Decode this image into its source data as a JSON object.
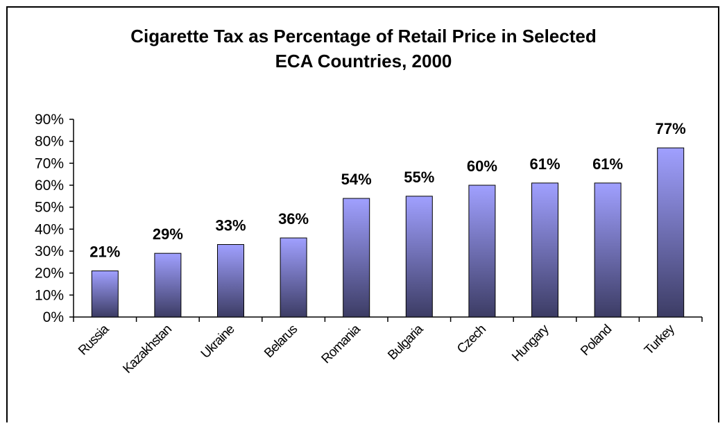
{
  "chart_data": {
    "type": "bar",
    "title_line1": "Cigarette Tax as Percentage of Retail Price in Selected",
    "title_line2": "ECA Countries, 2000",
    "xlabel": "",
    "ylabel": "",
    "categories": [
      "Russia",
      "Kazakhstan",
      "Ukraine",
      "Belarus",
      "Romania",
      "Bulgaria",
      "Czech",
      "Hungary",
      "Poland",
      "Turkey"
    ],
    "values": [
      21,
      29,
      33,
      36,
      54,
      55,
      60,
      61,
      61,
      77
    ],
    "value_labels": [
      "21%",
      "29%",
      "33%",
      "36%",
      "54%",
      "55%",
      "60%",
      "61%",
      "61%",
      "77%"
    ],
    "y_ticks": [
      "0%",
      "10%",
      "20%",
      "30%",
      "40%",
      "50%",
      "60%",
      "70%",
      "80%",
      "90%"
    ],
    "ylim": [
      0,
      90
    ],
    "grid": false,
    "legend": "none",
    "colors": {
      "bar_top": "#a0a0ff",
      "bar_bottom": "#3c3c64",
      "axis": "#000000"
    }
  }
}
